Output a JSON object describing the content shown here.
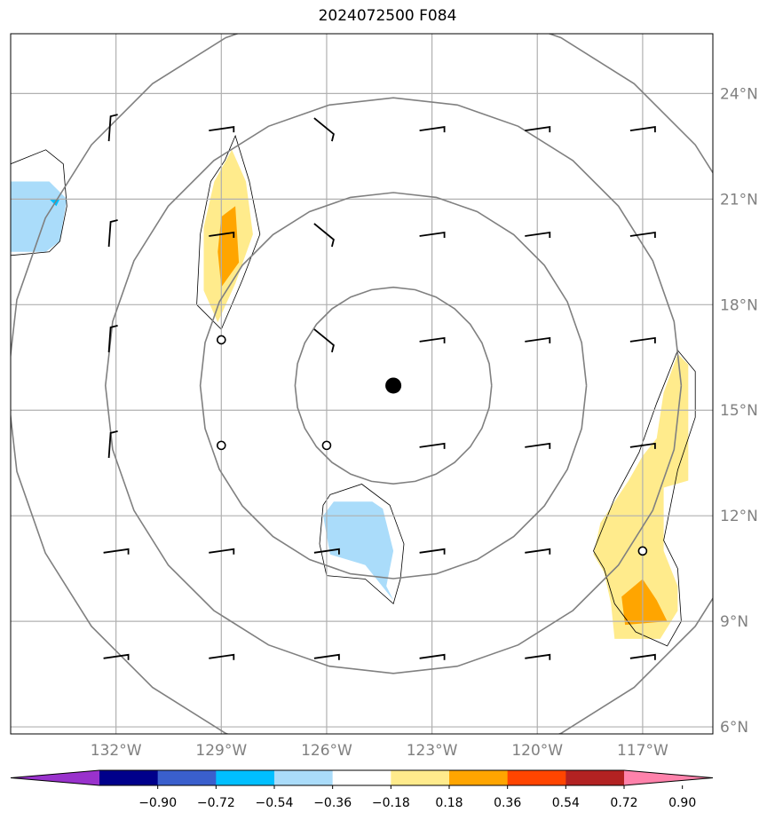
{
  "title": "2024072500 F084",
  "map": {
    "lon_range": [
      -135,
      -115
    ],
    "lat_range": [
      5.8,
      25.7
    ],
    "lon_ticks": [
      {
        "lon": -132,
        "label": "132°W"
      },
      {
        "lon": -129,
        "label": "129°W"
      },
      {
        "lon": -126,
        "label": "126°W"
      },
      {
        "lon": -123,
        "label": "123°W"
      },
      {
        "lon": -120,
        "label": "120°W"
      },
      {
        "lon": -117,
        "label": "117°W"
      }
    ],
    "lat_ticks": [
      {
        "lat": 6,
        "label": "6°N"
      },
      {
        "lat": 9,
        "label": "9°N"
      },
      {
        "lat": 12,
        "label": "12°N"
      },
      {
        "lat": 15,
        "label": "15°N"
      },
      {
        "lat": 18,
        "label": "18°N"
      },
      {
        "lat": 21,
        "label": "21°N"
      },
      {
        "lat": 24,
        "label": "24°N"
      }
    ],
    "center": {
      "lon": -124.1,
      "lat": 15.7
    },
    "range_rings_deg": [
      2.8,
      5.5,
      8.2,
      11.0
    ],
    "colors": {
      "grid": "#b0b0b0",
      "rings": "#808080",
      "center_dot": "#000000",
      "light_blue": "#aadcfa",
      "cyan": "#00bfff",
      "light_yellow": "#ffeb8c",
      "orange": "#ffa500"
    }
  },
  "colorbar": {
    "levels": [
      "−0.90",
      "−0.72",
      "−0.54",
      "−0.36",
      "−0.18",
      "0.18",
      "0.36",
      "0.54",
      "0.72",
      "0.90"
    ],
    "colors": [
      "#9932cc",
      "#00008b",
      "#3a5fcd",
      "#00bfff",
      "#aadcfa",
      "#ffffff",
      "#ffeb8c",
      "#ffa500",
      "#ff4500",
      "#b22222",
      "#ff82ab"
    ]
  },
  "wind_barbs": [
    {
      "lon": -132,
      "lat": 23
    },
    {
      "lon": -129,
      "lat": 23
    },
    {
      "lon": -126,
      "lat": 23
    },
    {
      "lon": -123,
      "lat": 23
    },
    {
      "lon": -120,
      "lat": 23
    },
    {
      "lon": -117,
      "lat": 23
    },
    {
      "lon": -132,
      "lat": 20
    },
    {
      "lon": -129,
      "lat": 20
    },
    {
      "lon": -126,
      "lat": 20
    },
    {
      "lon": -123,
      "lat": 20
    },
    {
      "lon": -120,
      "lat": 20
    },
    {
      "lon": -117,
      "lat": 20
    },
    {
      "lon": -132,
      "lat": 17
    },
    {
      "lon": -126,
      "lat": 17
    },
    {
      "lon": -123,
      "lat": 17
    },
    {
      "lon": -120,
      "lat": 17
    },
    {
      "lon": -117,
      "lat": 17
    },
    {
      "lon": -132,
      "lat": 14
    },
    {
      "lon": -123,
      "lat": 14
    },
    {
      "lon": -120,
      "lat": 14
    },
    {
      "lon": -117,
      "lat": 14
    },
    {
      "lon": -132,
      "lat": 11
    },
    {
      "lon": -129,
      "lat": 11
    },
    {
      "lon": -126,
      "lat": 11
    },
    {
      "lon": -123,
      "lat": 11
    },
    {
      "lon": -120,
      "lat": 11
    },
    {
      "lon": -132,
      "lat": 8
    },
    {
      "lon": -129,
      "lat": 8
    },
    {
      "lon": -126,
      "lat": 8
    },
    {
      "lon": -123,
      "lat": 8
    },
    {
      "lon": -120,
      "lat": 8
    },
    {
      "lon": -117,
      "lat": 8
    }
  ],
  "calm_points": [
    {
      "lon": -129,
      "lat": 17
    },
    {
      "lon": -129,
      "lat": 14
    },
    {
      "lon": -126,
      "lat": 14
    },
    {
      "lon": -117,
      "lat": 11
    }
  ]
}
